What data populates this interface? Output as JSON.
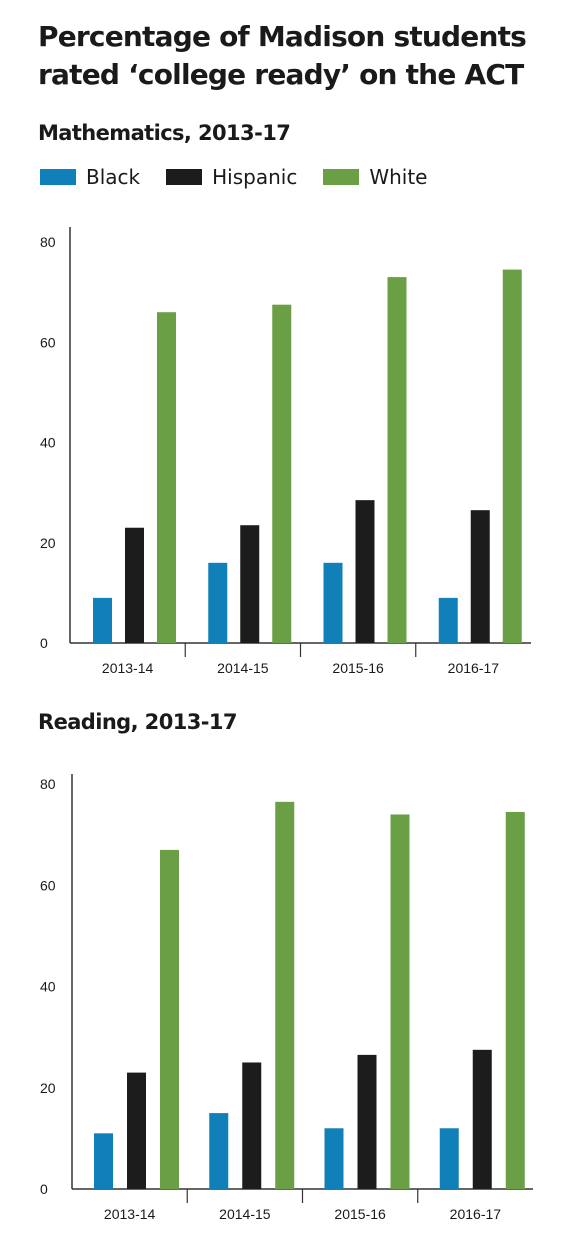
{
  "title": "Percentage of Madison students rated ‘college ready’ on the ACT",
  "legend": [
    {
      "label": "Black",
      "color": "#1280b8"
    },
    {
      "label": "Hispanic",
      "color": "#1c1c1c"
    },
    {
      "label": "White",
      "color": "#6a9f45"
    }
  ],
  "chart_data": [
    {
      "type": "bar",
      "title": "Mathematics, 2013-17",
      "categories": [
        "2013-14",
        "2014-15",
        "2015-16",
        "2016-17"
      ],
      "series": [
        {
          "name": "Black",
          "color": "#1280b8",
          "values": [
            9,
            16,
            16,
            9
          ]
        },
        {
          "name": "Hispanic",
          "color": "#1c1c1c",
          "values": [
            23,
            23.5,
            28.5,
            26.5
          ]
        },
        {
          "name": "White",
          "color": "#6a9f45",
          "values": [
            66,
            67.5,
            73,
            74.5
          ]
        }
      ],
      "yticks": [
        0,
        20,
        40,
        60,
        80
      ],
      "ylim": [
        0,
        83
      ],
      "xlabel": "",
      "ylabel": "",
      "grid": false
    },
    {
      "type": "bar",
      "title": "Reading, 2013-17",
      "categories": [
        "2013-14",
        "2014-15",
        "2015-16",
        "2016-17"
      ],
      "series": [
        {
          "name": "Black",
          "color": "#1280b8",
          "values": [
            11,
            15,
            12,
            12
          ]
        },
        {
          "name": "Hispanic",
          "color": "#1c1c1c",
          "values": [
            23,
            25,
            26.5,
            27.5
          ]
        },
        {
          "name": "White",
          "color": "#6a9f45",
          "values": [
            67,
            76.5,
            74,
            74.5
          ]
        }
      ],
      "yticks": [
        0,
        20,
        40,
        60,
        80
      ],
      "ylim": [
        0,
        82
      ],
      "xlabel": "",
      "ylabel": "",
      "grid": false
    }
  ]
}
